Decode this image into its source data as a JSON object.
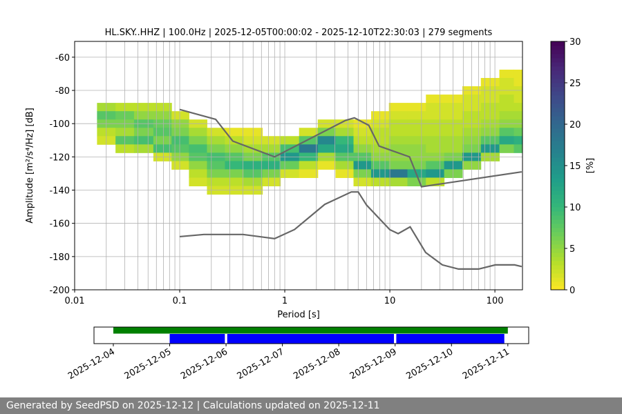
{
  "chart_data": [
    {
      "type": "ppsd",
      "title": "HL.SKY..HHZ | 100.0Hz | 2025-12-05T00:00:02 - 2025-12-10T22:30:03 | 279 segments",
      "x_label": "Period [s]",
      "y_label": "Amplitude [m²/s⁴/Hz] [dB]",
      "colorbar_label": "[%]",
      "log_x": true,
      "grid": true,
      "xlim": [
        0.01,
        183
      ],
      "xticks": [
        0.01,
        0.1,
        1,
        10,
        100
      ],
      "ylim": [
        -200,
        -50.5
      ],
      "yticks": [
        -200,
        -180,
        -160,
        -140,
        -120,
        -100,
        -80,
        -60
      ],
      "colormap": "viridis_r",
      "clim": [
        0,
        30
      ],
      "cticks": [
        0,
        5,
        10,
        15,
        20,
        25,
        30
      ],
      "bin_height": 5,
      "columns": [
        {
          "period": 0.02,
          "amplitudes": [
            -90,
            -95,
            -100,
            -105,
            -110
          ],
          "values": [
            4,
            8,
            6,
            3,
            2
          ]
        },
        {
          "period": 0.03,
          "amplitudes": [
            -90,
            -95,
            -100,
            -105,
            -110,
            -115
          ],
          "values": [
            3,
            7,
            6,
            4,
            8,
            3
          ]
        },
        {
          "period": 0.045,
          "amplitudes": [
            -90,
            -95,
            -100,
            -105,
            -110,
            -115
          ],
          "values": [
            3,
            5,
            8,
            6,
            9,
            4
          ]
        },
        {
          "period": 0.07,
          "amplitudes": [
            -90,
            -95,
            -100,
            -105,
            -110,
            -115,
            -120
          ],
          "values": [
            3,
            5,
            7,
            8,
            6,
            9,
            2
          ]
        },
        {
          "period": 0.1,
          "amplitudes": [
            -95,
            -100,
            -105,
            -110,
            -115,
            -120,
            -125
          ],
          "values": [
            2,
            5,
            6,
            9,
            8,
            5,
            2
          ]
        },
        {
          "period": 0.15,
          "amplitudes": [
            -100,
            -105,
            -110,
            -115,
            -120,
            -125,
            -130,
            -135
          ],
          "values": [
            2,
            4,
            6,
            9,
            8,
            5,
            3,
            2
          ]
        },
        {
          "period": 0.22,
          "amplitudes": [
            -105,
            -110,
            -115,
            -120,
            -125,
            -130,
            -135,
            -140
          ],
          "values": [
            2,
            4,
            6,
            9,
            8,
            6,
            3,
            2
          ]
        },
        {
          "period": 0.33,
          "amplitudes": [
            -105,
            -110,
            -115,
            -120,
            -125,
            -130,
            -135,
            -140
          ],
          "values": [
            1,
            3,
            5,
            8,
            10,
            6,
            3,
            2
          ]
        },
        {
          "period": 0.5,
          "amplitudes": [
            -105,
            -110,
            -115,
            -120,
            -125,
            -130,
            -135,
            -140
          ],
          "values": [
            1,
            2,
            4,
            6,
            11,
            8,
            4,
            2
          ]
        },
        {
          "period": 0.75,
          "amplitudes": [
            -110,
            -115,
            -120,
            -125,
            -130,
            -135
          ],
          "values": [
            2,
            4,
            8,
            11,
            6,
            2
          ]
        },
        {
          "period": 1.1,
          "amplitudes": [
            -110,
            -115,
            -120,
            -125,
            -130
          ],
          "values": [
            3,
            9,
            14,
            7,
            2
          ]
        },
        {
          "period": 1.7,
          "amplitudes": [
            -105,
            -110,
            -115,
            -120,
            -125,
            -130
          ],
          "values": [
            2,
            8,
            18,
            10,
            3,
            1
          ]
        },
        {
          "period": 2.5,
          "amplitudes": [
            -100,
            -105,
            -110,
            -115,
            -120,
            -125
          ],
          "values": [
            2,
            6,
            16,
            12,
            4,
            1
          ]
        },
        {
          "period": 3.7,
          "amplitudes": [
            -100,
            -105,
            -110,
            -115,
            -120,
            -125,
            -130
          ],
          "values": [
            2,
            4,
            10,
            12,
            8,
            4,
            1
          ]
        },
        {
          "period": 5.5,
          "amplitudes": [
            -100,
            -105,
            -110,
            -115,
            -120,
            -125,
            -130,
            -135
          ],
          "values": [
            1,
            2,
            3,
            5,
            8,
            14,
            6,
            2
          ]
        },
        {
          "period": 8,
          "amplitudes": [
            -95,
            -100,
            -105,
            -110,
            -115,
            -120,
            -125,
            -130,
            -135
          ],
          "values": [
            1,
            2,
            3,
            3,
            4,
            5,
            8,
            14,
            3
          ]
        },
        {
          "period": 12,
          "amplitudes": [
            -90,
            -95,
            -100,
            -105,
            -110,
            -115,
            -120,
            -125,
            -130,
            -135
          ],
          "values": [
            1,
            2,
            3,
            3,
            4,
            5,
            5,
            6,
            18,
            4
          ]
        },
        {
          "period": 18,
          "amplitudes": [
            -90,
            -95,
            -100,
            -105,
            -110,
            -115,
            -120,
            -125,
            -130,
            -135
          ],
          "values": [
            1,
            2,
            3,
            3,
            4,
            5,
            5,
            6,
            12,
            6
          ]
        },
        {
          "period": 27,
          "amplitudes": [
            -85,
            -90,
            -95,
            -100,
            -105,
            -110,
            -115,
            -120,
            -125,
            -130,
            -135
          ],
          "values": [
            1,
            2,
            2,
            3,
            3,
            4,
            4,
            5,
            8,
            14,
            3
          ]
        },
        {
          "period": 40,
          "amplitudes": [
            -85,
            -90,
            -95,
            -100,
            -105,
            -110,
            -115,
            -120,
            -125,
            -130
          ],
          "values": [
            1,
            2,
            2,
            3,
            3,
            4,
            4,
            6,
            14,
            6
          ]
        },
        {
          "period": 60,
          "amplitudes": [
            -80,
            -85,
            -90,
            -95,
            -100,
            -105,
            -110,
            -115,
            -120,
            -125
          ],
          "values": [
            1,
            2,
            2,
            3,
            3,
            4,
            5,
            6,
            14,
            5
          ]
        },
        {
          "period": 90,
          "amplitudes": [
            -75,
            -80,
            -85,
            -90,
            -95,
            -100,
            -105,
            -110,
            -115,
            -120
          ],
          "values": [
            1,
            2,
            2,
            3,
            3,
            4,
            5,
            8,
            14,
            4
          ]
        },
        {
          "period": 135,
          "amplitudes": [
            -70,
            -75,
            -80,
            -85,
            -90,
            -95,
            -100,
            -105,
            -110,
            -115
          ],
          "values": [
            1,
            2,
            2,
            3,
            3,
            4,
            5,
            8,
            12,
            6
          ]
        },
        {
          "period": 170,
          "amplitudes": [
            -70,
            -75,
            -80,
            -85,
            -90,
            -95,
            -100,
            -105,
            -110,
            -115
          ],
          "values": [
            1,
            1,
            2,
            2,
            3,
            4,
            5,
            7,
            11,
            8
          ]
        }
      ],
      "lines": [
        {
          "color": "#666666",
          "x": [
            0.1,
            0.22,
            0.32,
            0.8,
            3.8,
            4.6,
            6.3,
            7.9,
            15.4,
            20,
            180
          ],
          "values": [
            -91.5,
            -97.4,
            -110.5,
            -120,
            -98,
            -96.5,
            -101,
            -113.5,
            -120,
            -138,
            -129
          ]
        },
        {
          "color": "#666666",
          "x": [
            0.1,
            0.17,
            0.4,
            0.8,
            1.24,
            2.4,
            4.3,
            5,
            6,
            10,
            12,
            15.6,
            21.9,
            31.6,
            45,
            70,
            101,
            154,
            180
          ],
          "values": [
            -168,
            -166.7,
            -166.7,
            -169.2,
            -163.7,
            -148.6,
            -141.1,
            -141.1,
            -149,
            -163.8,
            -166.2,
            -162.1,
            -177.5,
            -185,
            -187.5,
            -187.5,
            -185,
            -185,
            -186
          ]
        }
      ]
    },
    {
      "type": "timeline",
      "xlim": [
        "2025-12-03T15:46",
        "2025-12-11T08:53"
      ],
      "xticks": [
        "2025-12-04",
        "2025-12-05",
        "2025-12-06",
        "2025-12-07",
        "2025-12-08",
        "2025-12-09",
        "2025-12-10",
        "2025-12-11"
      ],
      "available": {
        "color": "#008000",
        "ranges": [
          [
            "2025-12-04T00:00",
            "2025-12-11T00:00"
          ]
        ]
      },
      "used": {
        "color": "#0000ff",
        "ranges": [
          [
            "2025-12-05T00:00",
            "2025-12-05T23:30"
          ],
          [
            "2025-12-06T00:30",
            "2025-12-08T23:30"
          ],
          [
            "2025-12-09T00:30",
            "2025-12-10T22:30"
          ]
        ]
      }
    }
  ],
  "footer": "Generated by SeedPSD on 2025-12-12 | Calculations updated on 2025-12-11"
}
